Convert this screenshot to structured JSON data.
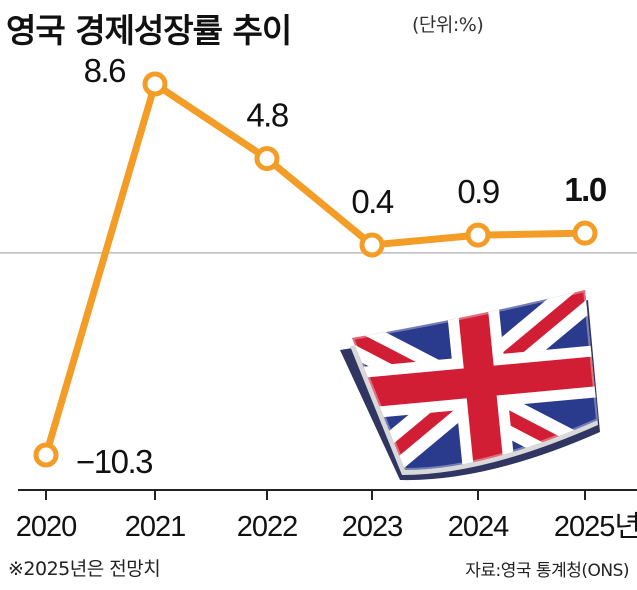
{
  "header": {
    "title": "영국 경제성장률 추이",
    "unit": "(단위:%)"
  },
  "footer": {
    "note": "※2025년은 전망치",
    "source": "자료:영국 통계청(ONS)"
  },
  "colors": {
    "line": "#f39c26",
    "marker_fill": "#ffffff",
    "baseline": "#bbbbbb",
    "flag_blue": "#2a3a8c",
    "flag_red": "#d21e34"
  },
  "flag_icon": "union-jack-flag-icon",
  "chart_data": {
    "type": "line",
    "title": "영국 경제성장률 추이",
    "unit": "(단위:%)",
    "x": [
      "2020",
      "2021",
      "2022",
      "2023",
      "2024",
      "2025년"
    ],
    "values": [
      -10.3,
      8.6,
      4.8,
      0.4,
      0.9,
      1.0
    ],
    "value_labels": [
      "−10.3",
      "8.6",
      "4.8",
      "0.4",
      "0.9",
      "1.0"
    ],
    "highlight_index": 5,
    "ylim": [
      -11,
      10
    ],
    "reference_line": 0,
    "grid": false,
    "legend": "none"
  }
}
